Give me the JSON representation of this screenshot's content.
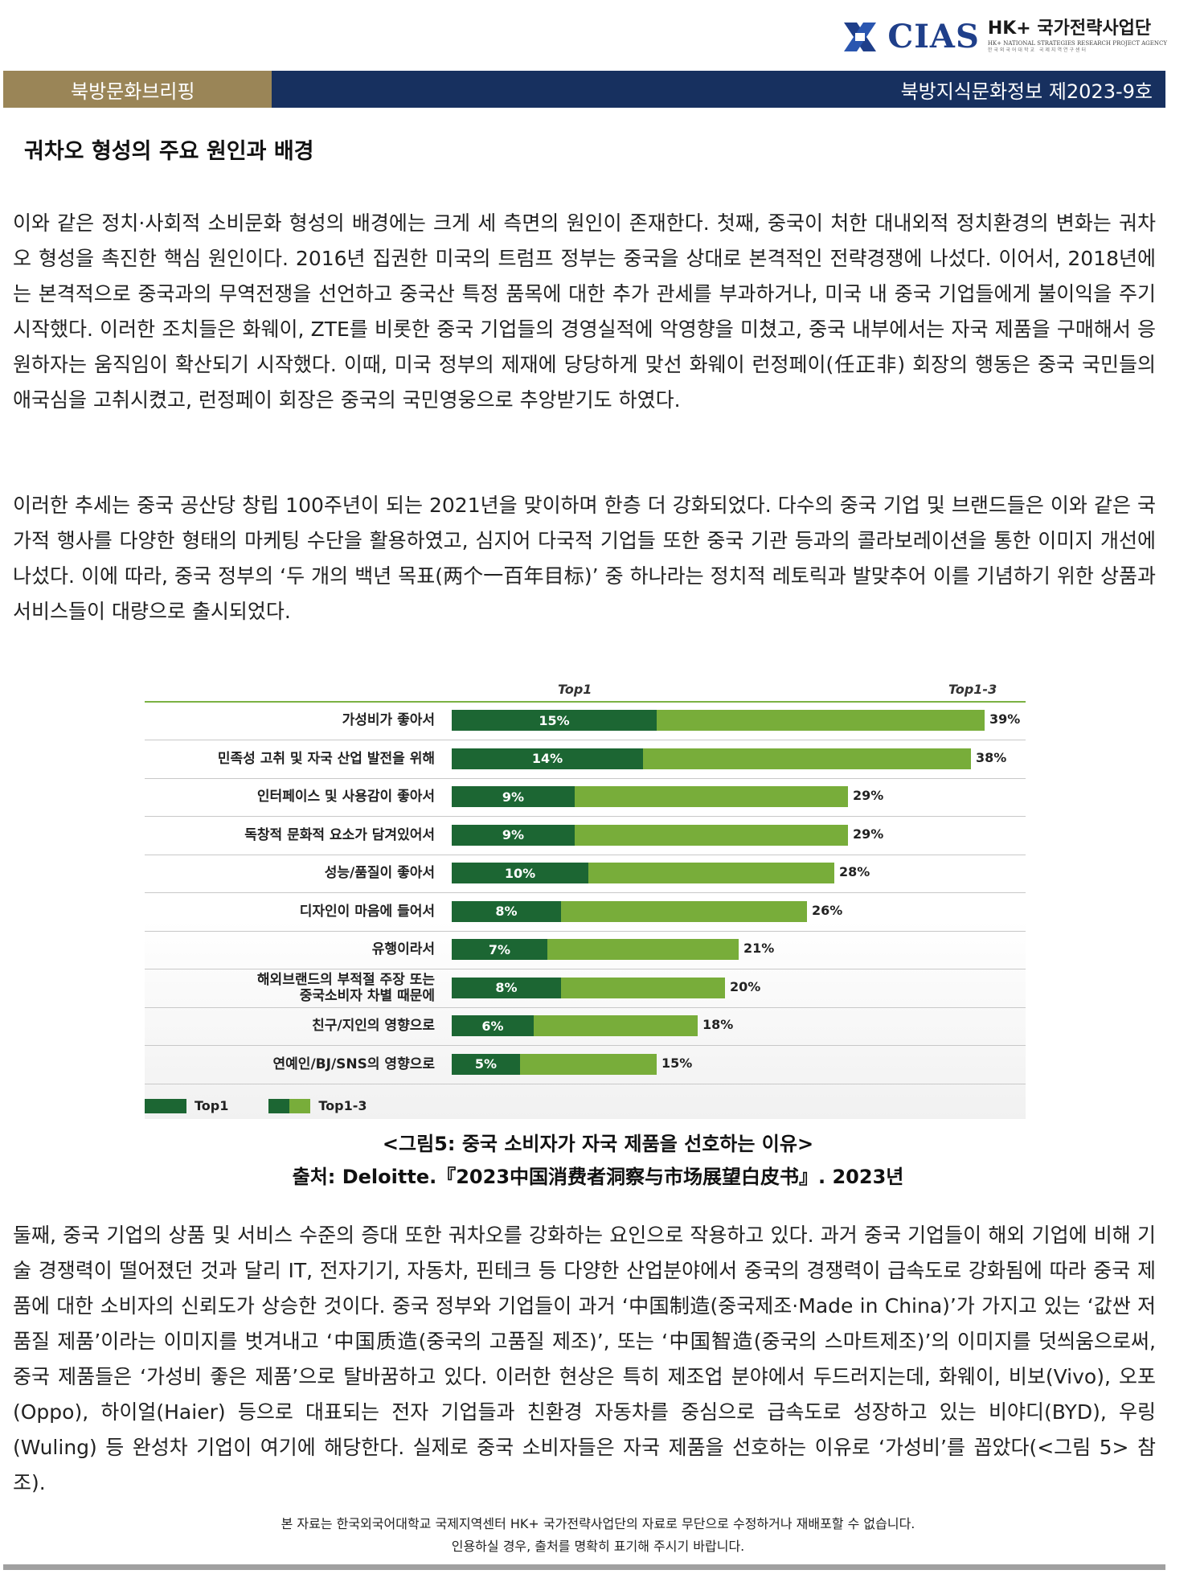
{
  "header": {
    "logo_text": "CIAS",
    "logo_title": "HK+ 국가전략사업단",
    "logo_subtitle": "HK+ NATIONAL STRATEGIES RESEARCH PROJECT AGENCY",
    "logo_subtitle2": "한국외국어대학교 국제지역연구센터"
  },
  "banner": {
    "left": "북방문화브리핑",
    "right": "북방지식문화정보 제2023-9호"
  },
  "section_title": "궈차오 형성의 주요 원인과 배경",
  "paragraphs": [
    "이와 같은 정치·사회적 소비문화 형성의 배경에는 크게 세 측면의 원인이 존재한다. 첫째, 중국이 처한 대내외적 정치환경의 변화는 궈차오 형성을 촉진한 핵심 원인이다. 2016년 집권한 미국의 트럼프 정부는 중국을 상대로 본격적인 전략경쟁에 나섰다. 이어서, 2018년에는 본격적으로 중국과의 무역전쟁을 선언하고 중국산 특정 품목에 대한 추가 관세를 부과하거나, 미국 내 중국 기업들에게 불이익을 주기 시작했다. 이러한 조치들은 화웨이, ZTE를 비롯한 중국 기업들의 경영실적에 악영향을 미쳤고, 중국 내부에서는 자국 제품을 구매해서 응원하자는 움직임이 확산되기 시작했다. 이때, 미국 정부의 제재에 당당하게 맞선 화웨이 런정페이(任正非) 회장의 행동은 중국 국민들의 애국심을 고취시켰고, 런정페이 회장은 중국의 국민영웅으로 추앙받기도 하였다.",
    "이러한 추세는 중국 공산당 창립 100주년이 되는 2021년을 맞이하며 한층 더 강화되었다. 다수의 중국 기업 및 브랜드들은 이와 같은 국가적 행사를 다양한 형태의 마케팅 수단을 활용하였고, 심지어 다국적 기업들 또한 중국 기관 등과의 콜라보레이션을 통한 이미지 개선에 나섰다. 이에 따라, 중국 정부의 ‘두 개의 백년 목표(两个一百年目标)’ 중 하나라는 정치적 레토릭과 발맞추어 이를 기념하기 위한 상품과 서비스들이 대량으로 출시되었다.",
    "둘째, 중국 기업의 상품 및 서비스 수준의 증대 또한 궈차오를 강화하는 요인으로 작용하고 있다. 과거 중국 기업들이 해외 기업에 비해 기술 경쟁력이 떨어졌던 것과 달리 IT, 전자기기, 자동차, 핀테크 등 다양한 산업분야에서 중국의 경쟁력이 급속도로 강화됨에 따라 중국 제품에 대한 소비자의 신뢰도가 상승한 것이다. 중국 정부와 기업들이 과거 ‘中国制造(중국제조·Made in China)’가 가지고 있는 ‘값싼 저품질 제품’이라는 이미지를 벗겨내고 ‘中国质造(중국의 고품질 제조)’, 또는 ‘中国智造(중국의 스마트제조)’의 이미지를 덧씌움으로써, 중국 제품들은 ‘가성비 좋은 제품’으로 탈바꿈하고 있다. 이러한 현상은 특히 제조업 분야에서 두드러지는데, 화웨이, 비보(Vivo), 오포(Oppo), 하이얼(Haier) 등으로 대표되는 전자 기업들과 친환경 자동차를 중심으로 급속도로 성장하고 있는 비야디(BYD), 우링(Wuling) 등 완성차 기업이 여기에 해당한다. 실제로 중국 소비자들은 자국 제품을 선호하는 이유로 ‘가성비’를 꼽았다(<그림 5> 참조)."
  ],
  "chart_data": {
    "type": "bar",
    "orientation": "horizontal",
    "column_headers": [
      "Top1",
      "Top1-3"
    ],
    "categories": [
      "가성비가 좋아서",
      "민족성 고취 및 자국 산업 발전을 위해",
      "인터페이스 및 사용감이 좋아서",
      "독창적 문화적 요소가 담겨있어서",
      "성능/품질이 좋아서",
      "디자인이 마음에 들어서",
      "유행이라서",
      "해외브랜드의 부적절 주장 또는 중국소비자 차별 때문에",
      "친구/지인의 영향으로",
      "연예인/BJ/SNS의 영향으로"
    ],
    "category_lines": [
      [
        "가성비가 좋아서"
      ],
      [
        "민족성 고취 및 자국 산업 발전을 위해"
      ],
      [
        "인터페이스 및 사용감이 좋아서"
      ],
      [
        "독창적 문화적 요소가 담겨있어서"
      ],
      [
        "성능/품질이 좋아서"
      ],
      [
        "디자인이 마음에 들어서"
      ],
      [
        "유행이라서"
      ],
      [
        "해외브랜드의 부적절 주장 또는",
        "중국소비자 차별 때문에"
      ],
      [
        "친구/지인의 영향으로"
      ],
      [
        "연예인/BJ/SNS의 영향으로"
      ]
    ],
    "series": [
      {
        "name": "Top1",
        "values": [
          15,
          14,
          9,
          9,
          10,
          8,
          7,
          8,
          6,
          5
        ],
        "color": "#1c6633"
      },
      {
        "name": "Top1-3",
        "values": [
          39,
          38,
          29,
          29,
          28,
          26,
          21,
          20,
          18,
          15
        ],
        "color": "#78ad3a"
      }
    ],
    "value_suffix": "%",
    "legend_position": "bottom-left",
    "grid": false
  },
  "figure": {
    "caption": "<그림5: 중국 소비자가 자국 제품을 선호하는 이유>",
    "source": "출처: Deloitte.『2023中国消费者洞察与市场展望白皮书』. 2023년"
  },
  "footer": {
    "line1": "본 자료는 한국외국어대학교 국제지역센터 HK+ 국가전략사업단의 자료로 무단으로 수정하거나 재배포할 수 없습니다.",
    "line2": "인용하실 경우, 출처를 명확히 표기해 주시기 바랍니다."
  }
}
